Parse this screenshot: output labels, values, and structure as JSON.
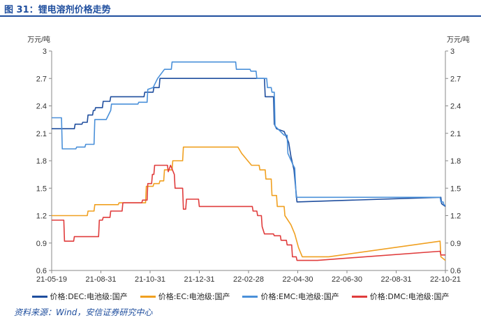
{
  "header": {
    "title": "图 31：锂电溶剂价格走势"
  },
  "source": "资料来源：Wind，安信证券研究中心",
  "chart_data": {
    "type": "line",
    "ylabel_left": "万元/吨",
    "ylabel_right": "万元/吨",
    "ylim": [
      0.6,
      3
    ],
    "yticks": [
      "0.6",
      "0.9",
      "1.2",
      "1.5",
      "1.8",
      "2.1",
      "2.4",
      "2.7",
      "3"
    ],
    "xticks": [
      "21-05-19",
      "21-08-31",
      "21-10-31",
      "21-12-31",
      "22-02-28",
      "22-04-30",
      "22-06-30",
      "22-08-31",
      "22-10-21"
    ],
    "grid": false,
    "legend_position": "bottom",
    "series": [
      {
        "name": "价格:DEC:电池级:国产",
        "color": "#1f4e9e",
        "points": [
          [
            "2021-05-19",
            2.15
          ],
          [
            "2021-06-18",
            2.15
          ],
          [
            "2021-06-19",
            2.2
          ],
          [
            "2021-06-28",
            2.2
          ],
          [
            "2021-06-29",
            2.22
          ],
          [
            "2021-07-05",
            2.22
          ],
          [
            "2021-07-06",
            2.3
          ],
          [
            "2021-07-12",
            2.3
          ],
          [
            "2021-07-13",
            2.35
          ],
          [
            "2021-07-15",
            2.35
          ],
          [
            "2021-07-16",
            2.38
          ],
          [
            "2021-07-25",
            2.38
          ],
          [
            "2021-07-26",
            2.45
          ],
          [
            "2021-08-04",
            2.45
          ],
          [
            "2021-08-05",
            2.5
          ],
          [
            "2021-09-18",
            2.5
          ],
          [
            "2021-09-19",
            2.55
          ],
          [
            "2021-09-30",
            2.55
          ],
          [
            "2021-10-01",
            2.6
          ],
          [
            "2021-10-08",
            2.6
          ],
          [
            "2021-10-09",
            2.7
          ],
          [
            "2022-02-24",
            2.7
          ],
          [
            "2022-02-25",
            2.5
          ],
          [
            "2022-03-08",
            2.5
          ],
          [
            "2022-03-09",
            2.2
          ],
          [
            "2022-03-12",
            2.15
          ],
          [
            "2022-03-22",
            2.12
          ],
          [
            "2022-03-28",
            2.0
          ],
          [
            "2022-03-31",
            1.85
          ],
          [
            "2022-04-04",
            1.7
          ],
          [
            "2022-04-08",
            1.35
          ],
          [
            "2022-10-15",
            1.4
          ],
          [
            "2022-10-16",
            1.33
          ],
          [
            "2022-10-21",
            1.3
          ]
        ]
      },
      {
        "name": "价格:EC:电池级:国产",
        "color": "#f0a020",
        "points": [
          [
            "2021-05-19",
            1.2
          ],
          [
            "2021-07-05",
            1.2
          ],
          [
            "2021-07-06",
            1.25
          ],
          [
            "2021-07-14",
            1.25
          ],
          [
            "2021-07-15",
            1.32
          ],
          [
            "2021-08-15",
            1.32
          ],
          [
            "2021-08-16",
            1.34
          ],
          [
            "2021-09-20",
            1.34
          ],
          [
            "2021-09-21",
            1.52
          ],
          [
            "2021-09-30",
            1.52
          ],
          [
            "2021-10-01",
            1.55
          ],
          [
            "2021-10-08",
            1.55
          ],
          [
            "2021-10-09",
            1.58
          ],
          [
            "2021-10-14",
            1.58
          ],
          [
            "2021-10-15",
            1.7
          ],
          [
            "2021-10-25",
            1.7
          ],
          [
            "2021-10-26",
            1.8
          ],
          [
            "2021-11-08",
            1.8
          ],
          [
            "2021-11-09",
            1.95
          ],
          [
            "2022-01-20",
            1.95
          ],
          [
            "2021-12-31",
            1.95
          ],
          [
            "2022-01-20",
            1.95
          ],
          [
            "2022-01-25",
            1.88
          ],
          [
            "2022-01-31",
            1.82
          ],
          [
            "2022-02-07",
            1.75
          ],
          [
            "2022-02-17",
            1.75
          ],
          [
            "2022-02-18",
            1.7
          ],
          [
            "2022-02-25",
            1.7
          ],
          [
            "2022-02-26",
            1.6
          ],
          [
            "2022-03-05",
            1.6
          ],
          [
            "2022-03-06",
            1.42
          ],
          [
            "2022-03-12",
            1.42
          ],
          [
            "2022-03-13",
            1.3
          ],
          [
            "2022-03-22",
            1.3
          ],
          [
            "2022-03-23",
            1.2
          ],
          [
            "2022-03-31",
            1.1
          ],
          [
            "2022-04-05",
            1.0
          ],
          [
            "2022-04-10",
            0.85
          ],
          [
            "2022-04-15",
            0.75
          ],
          [
            "2022-05-20",
            0.75
          ],
          [
            "2022-10-14",
            0.92
          ],
          [
            "2022-10-15",
            0.75
          ],
          [
            "2022-10-21",
            0.71
          ]
        ]
      },
      {
        "name": "价格:EMC:电池级:国产",
        "color": "#4a90d9",
        "points": [
          [
            "2021-05-19",
            2.27
          ],
          [
            "2021-06-01",
            2.27
          ],
          [
            "2021-06-02",
            1.93
          ],
          [
            "2021-06-20",
            1.93
          ],
          [
            "2021-06-21",
            1.95
          ],
          [
            "2021-07-02",
            1.95
          ],
          [
            "2021-07-03",
            1.98
          ],
          [
            "2021-07-14",
            1.98
          ],
          [
            "2021-07-15",
            2.25
          ],
          [
            "2021-07-30",
            2.25
          ],
          [
            "2021-08-05",
            2.35
          ],
          [
            "2021-08-06",
            2.42
          ],
          [
            "2021-09-10",
            2.42
          ],
          [
            "2021-09-11",
            2.44
          ],
          [
            "2021-09-22",
            2.44
          ],
          [
            "2021-09-23",
            2.58
          ],
          [
            "2021-09-30",
            2.6
          ],
          [
            "2021-10-06",
            2.7
          ],
          [
            "2021-10-15",
            2.8
          ],
          [
            "2021-10-24",
            2.8
          ],
          [
            "2021-10-25",
            2.88
          ],
          [
            "2022-01-17",
            2.88
          ],
          [
            "2022-01-18",
            2.8
          ],
          [
            "2022-02-05",
            2.8
          ],
          [
            "2022-02-06",
            2.78
          ],
          [
            "2022-02-13",
            2.78
          ],
          [
            "2022-02-14",
            2.7
          ],
          [
            "2022-02-27",
            2.7
          ],
          [
            "2022-02-28",
            2.6
          ],
          [
            "2022-03-05",
            2.6
          ],
          [
            "2022-03-06",
            2.55
          ],
          [
            "2022-03-09",
            2.55
          ],
          [
            "2022-03-10",
            2.18
          ],
          [
            "2022-03-22",
            2.08
          ],
          [
            "2022-03-26",
            2.08
          ],
          [
            "2022-03-27",
            1.88
          ],
          [
            "2022-04-03",
            1.75
          ],
          [
            "2022-04-05",
            1.72
          ],
          [
            "2022-04-07",
            1.4
          ],
          [
            "2022-10-14",
            1.4
          ],
          [
            "2022-10-15",
            1.35
          ],
          [
            "2022-10-18",
            1.35
          ],
          [
            "2022-10-19",
            1.32
          ],
          [
            "2022-10-21",
            1.31
          ]
        ]
      },
      {
        "name": "价格:DMC:电池级:国产",
        "color": "#e03c3c",
        "points": [
          [
            "2021-05-19",
            1.15
          ],
          [
            "2021-06-04",
            1.15
          ],
          [
            "2021-06-05",
            0.92
          ],
          [
            "2021-06-17",
            0.92
          ],
          [
            "2021-06-18",
            0.97
          ],
          [
            "2021-07-20",
            0.97
          ],
          [
            "2021-07-21",
            1.15
          ],
          [
            "2021-07-25",
            1.15
          ],
          [
            "2021-07-26",
            1.18
          ],
          [
            "2021-08-04",
            1.18
          ],
          [
            "2021-08-05",
            1.25
          ],
          [
            "2021-08-20",
            1.25
          ],
          [
            "2021-08-21",
            1.34
          ],
          [
            "2021-09-15",
            1.34
          ],
          [
            "2021-09-16",
            1.37
          ],
          [
            "2021-09-22",
            1.37
          ],
          [
            "2021-09-23",
            1.55
          ],
          [
            "2021-09-28",
            1.55
          ],
          [
            "2021-09-29",
            1.65
          ],
          [
            "2021-10-01",
            1.65
          ],
          [
            "2021-10-02",
            1.75
          ],
          [
            "2021-10-19",
            1.75
          ],
          [
            "2021-10-20",
            1.68
          ],
          [
            "2021-10-23",
            1.75
          ],
          [
            "2021-10-28",
            1.65
          ],
          [
            "2021-10-29",
            1.5
          ],
          [
            "2021-11-08",
            1.5
          ],
          [
            "2021-11-09",
            1.27
          ],
          [
            "2021-11-12",
            1.27
          ],
          [
            "2021-11-13",
            1.38
          ],
          [
            "2021-11-29",
            1.38
          ],
          [
            "2021-11-30",
            1.3
          ],
          [
            "2022-02-08",
            1.3
          ],
          [
            "2022-02-09",
            1.25
          ],
          [
            "2022-02-14",
            1.25
          ],
          [
            "2022-02-15",
            1.2
          ],
          [
            "2022-02-20",
            1.2
          ],
          [
            "2022-02-21",
            1.08
          ],
          [
            "2022-02-24",
            1.0
          ],
          [
            "2022-03-08",
            1.0
          ],
          [
            "2022-03-09",
            0.98
          ],
          [
            "2022-03-17",
            0.98
          ],
          [
            "2022-03-18",
            0.93
          ],
          [
            "2022-03-25",
            0.93
          ],
          [
            "2022-03-26",
            0.88
          ],
          [
            "2022-04-01",
            0.88
          ],
          [
            "2022-04-02",
            0.75
          ],
          [
            "2022-04-07",
            0.75
          ],
          [
            "2022-04-08",
            0.71
          ],
          [
            "2022-05-05",
            0.71
          ],
          [
            "2022-05-20",
            0.72
          ],
          [
            "2022-10-14",
            0.81
          ],
          [
            "2022-10-15",
            0.77
          ],
          [
            "2022-10-21",
            0.77
          ]
        ]
      }
    ]
  }
}
